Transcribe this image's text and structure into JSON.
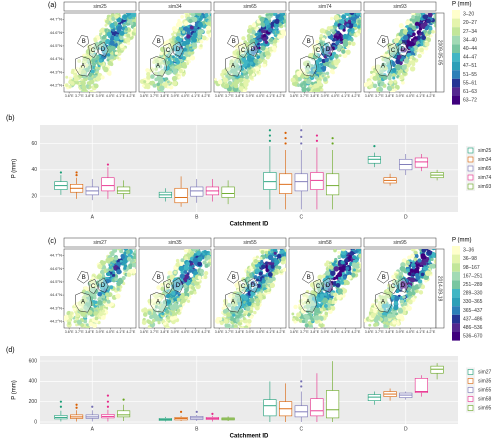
{
  "chart_data": [
    {
      "type": "map",
      "label": "(a)",
      "panels": [
        "sim25",
        "sim34",
        "sim65",
        "sim74",
        "sim93"
      ],
      "date": "2009-05-05",
      "xlim": [
        3.55,
        4.25
      ],
      "ylim": [
        44.15,
        44.75
      ],
      "xticks": [
        {
          "value": 3.6,
          "label": "3.6°E"
        },
        {
          "value": 3.7,
          "label": "3.7°E"
        },
        {
          "value": 3.8,
          "label": "3.8°E"
        },
        {
          "value": 3.9,
          "label": "3.9°E"
        },
        {
          "value": 4.0,
          "label": "4.0°E"
        },
        {
          "value": 4.1,
          "label": "4.1°E"
        },
        {
          "value": 4.2,
          "label": "4.2°E"
        }
      ],
      "yticks": [
        {
          "value": 44.2,
          "label": "44.2°N"
        },
        {
          "value": 44.3,
          "label": "44.3°N"
        },
        {
          "value": 44.4,
          "label": "44.4°N"
        },
        {
          "value": 44.5,
          "label": "44.5°N"
        },
        {
          "value": 44.6,
          "label": "44.6°N"
        },
        {
          "value": 44.7,
          "label": "44.7°N"
        }
      ],
      "legend_title": "P (mm)",
      "bins": [
        {
          "label": "3–20",
          "color": "#ffffcc"
        },
        {
          "label": "20–27",
          "color": "#e4f4ac"
        },
        {
          "label": "27–34",
          "color": "#c2e699"
        },
        {
          "label": "34–40",
          "color": "#a1dab4"
        },
        {
          "label": "40–44",
          "color": "#78c6a0"
        },
        {
          "label": "44–47",
          "color": "#41b6c4"
        },
        {
          "label": "47–51",
          "color": "#2c9fb8"
        },
        {
          "label": "51–55",
          "color": "#2c7fb8"
        },
        {
          "label": "55–61",
          "color": "#253494"
        },
        {
          "label": "61–63",
          "color": "#54278f"
        },
        {
          "label": "63–72",
          "color": "#3f007d"
        }
      ],
      "catchments": [
        "A",
        "B",
        "C",
        "D"
      ]
    },
    {
      "type": "box",
      "label": "(b)",
      "xlabel": "Catchment ID",
      "ylabel": "P (mm)",
      "categories": [
        "A",
        "B",
        "C",
        "D"
      ],
      "ylim": [
        8,
        74
      ],
      "yticks": [
        20,
        40,
        60
      ],
      "grid": true,
      "series": [
        {
          "name": "sim25",
          "color": "#1b9e77",
          "min": [
            21,
            16,
            10,
            42
          ],
          "q1": [
            25,
            19,
            25,
            45
          ],
          "median": [
            28,
            21,
            31,
            48
          ],
          "q3": [
            31,
            23,
            38,
            50
          ],
          "max": [
            36,
            26,
            58,
            53
          ],
          "outliers": [
            [
              38
            ],
            [],
            [
              62,
              66,
              70
            ],
            [
              58
            ]
          ]
        },
        {
          "name": "sim34",
          "color": "#d95f02",
          "min": [
            18,
            12,
            10,
            28
          ],
          "q1": [
            23,
            15,
            22,
            30
          ],
          "median": [
            26,
            19,
            29,
            32
          ],
          "q3": [
            29,
            26,
            37,
            34
          ],
          "max": [
            34,
            35,
            55,
            37
          ],
          "outliers": [
            [
              36,
              38
            ],
            [],
            [
              60,
              64,
              68
            ],
            []
          ]
        },
        {
          "name": "sim65",
          "color": "#7570b3",
          "min": [
            17,
            15,
            10,
            36
          ],
          "q1": [
            21,
            20,
            24,
            40
          ],
          "median": [
            24,
            24,
            31,
            44
          ],
          "q3": [
            27,
            27,
            37,
            48
          ],
          "max": [
            33,
            33,
            55,
            52
          ],
          "outliers": [
            [],
            [],
            [
              60,
              65,
              70
            ],
            []
          ]
        },
        {
          "name": "sim74",
          "color": "#e7298a",
          "min": [
            18,
            16,
            10,
            39
          ],
          "q1": [
            24,
            21,
            25,
            42
          ],
          "median": [
            28,
            24,
            32,
            46
          ],
          "q3": [
            34,
            27,
            38,
            49
          ],
          "max": [
            42,
            33,
            57,
            52
          ],
          "outliers": [
            [
              44
            ],
            [],
            [
              62,
              66
            ],
            []
          ]
        },
        {
          "name": "sim93",
          "color": "#66a61e",
          "min": [
            18,
            14,
            10,
            32
          ],
          "q1": [
            22,
            19,
            21,
            34
          ],
          "median": [
            24,
            22,
            28,
            36
          ],
          "q3": [
            27,
            27,
            37,
            38
          ],
          "max": [
            32,
            32,
            55,
            40
          ],
          "outliers": [
            [],
            [],
            [
              60,
              64
            ],
            []
          ]
        }
      ]
    },
    {
      "type": "map",
      "label": "(c)",
      "panels": [
        "sim27",
        "sim35",
        "sim55",
        "sim58",
        "sim95"
      ],
      "date": "2014-09-18",
      "xlim": [
        3.55,
        4.25
      ],
      "ylim": [
        44.15,
        44.75
      ],
      "xticks": [
        {
          "value": 3.6,
          "label": "3.6°E"
        },
        {
          "value": 3.7,
          "label": "3.7°E"
        },
        {
          "value": 3.8,
          "label": "3.8°E"
        },
        {
          "value": 3.9,
          "label": "3.9°E"
        },
        {
          "value": 4.0,
          "label": "4.0°E"
        },
        {
          "value": 4.1,
          "label": "4.1°E"
        },
        {
          "value": 4.2,
          "label": "4.2°E"
        }
      ],
      "yticks": [
        {
          "value": 44.2,
          "label": "44.2°N"
        },
        {
          "value": 44.3,
          "label": "44.3°N"
        },
        {
          "value": 44.4,
          "label": "44.4°N"
        },
        {
          "value": 44.5,
          "label": "44.5°N"
        },
        {
          "value": 44.6,
          "label": "44.6°N"
        },
        {
          "value": 44.7,
          "label": "44.7°N"
        }
      ],
      "legend_title": "P (mm)",
      "bins": [
        {
          "label": "3–36",
          "color": "#ffffcc"
        },
        {
          "label": "36–98",
          "color": "#e4f4ac"
        },
        {
          "label": "98–167",
          "color": "#c2e699"
        },
        {
          "label": "167–251",
          "color": "#a1dab4"
        },
        {
          "label": "251–289",
          "color": "#78c6a0"
        },
        {
          "label": "289–330",
          "color": "#41b6c4"
        },
        {
          "label": "330–365",
          "color": "#2c9fb8"
        },
        {
          "label": "365–437",
          "color": "#2c7fb8"
        },
        {
          "label": "437–486",
          "color": "#253494"
        },
        {
          "label": "486–536",
          "color": "#54278f"
        },
        {
          "label": "536–670",
          "color": "#3f007d"
        }
      ],
      "catchments": [
        "A",
        "B",
        "C",
        "D"
      ]
    },
    {
      "type": "box",
      "label": "(d)",
      "xlabel": "Catchment ID",
      "ylabel": "P (mm)",
      "categories": [
        "A",
        "B",
        "C",
        "D"
      ],
      "ylim": [
        -20,
        650
      ],
      "yticks": [
        0,
        200,
        400,
        600
      ],
      "grid": true,
      "series": [
        {
          "name": "sim27",
          "color": "#1b9e77",
          "min": [
            5,
            5,
            0,
            170
          ],
          "q1": [
            30,
            15,
            60,
            210
          ],
          "median": [
            45,
            25,
            160,
            245
          ],
          "q3": [
            65,
            35,
            220,
            270
          ],
          "max": [
            110,
            50,
            400,
            300
          ],
          "outliers": [
            [
              150,
              200
            ],
            [],
            [],
            []
          ]
        },
        {
          "name": "sim35",
          "color": "#d95f02",
          "min": [
            5,
            10,
            0,
            210
          ],
          "q1": [
            35,
            20,
            60,
            250
          ],
          "median": [
            50,
            35,
            130,
            275
          ],
          "q3": [
            70,
            45,
            200,
            300
          ],
          "max": [
            115,
            60,
            380,
            330
          ],
          "outliers": [
            [
              140,
              170
            ],
            [
              100
            ],
            [],
            []
          ]
        },
        {
          "name": "sim55",
          "color": "#7570b3",
          "min": [
            5,
            10,
            0,
            220
          ],
          "q1": [
            35,
            25,
            50,
            240
          ],
          "median": [
            50,
            40,
            100,
            265
          ],
          "q3": [
            70,
            55,
            160,
            285
          ],
          "max": [
            115,
            70,
            300,
            300
          ],
          "outliers": [
            [
              150
            ],
            [
              100
            ],
            [
              350,
              400
            ],
            []
          ]
        },
        {
          "name": "sim58",
          "color": "#e7298a",
          "min": [
            5,
            5,
            0,
            250
          ],
          "q1": [
            40,
            25,
            60,
            290
          ],
          "median": [
            55,
            35,
            110,
            300
          ],
          "q3": [
            75,
            45,
            230,
            430
          ],
          "max": [
            120,
            60,
            480,
            460
          ],
          "outliers": [
            [
              150,
              200,
              260
            ],
            [
              80
            ],
            [],
            []
          ]
        },
        {
          "name": "sim95",
          "color": "#66a61e",
          "min": [
            10,
            10,
            0,
            420
          ],
          "q1": [
            50,
            20,
            40,
            480
          ],
          "median": [
            70,
            30,
            120,
            520
          ],
          "q3": [
            110,
            40,
            310,
            550
          ],
          "max": [
            170,
            55,
            600,
            580
          ],
          "outliers": [
            [
              220
            ],
            [],
            [],
            []
          ]
        }
      ]
    }
  ]
}
